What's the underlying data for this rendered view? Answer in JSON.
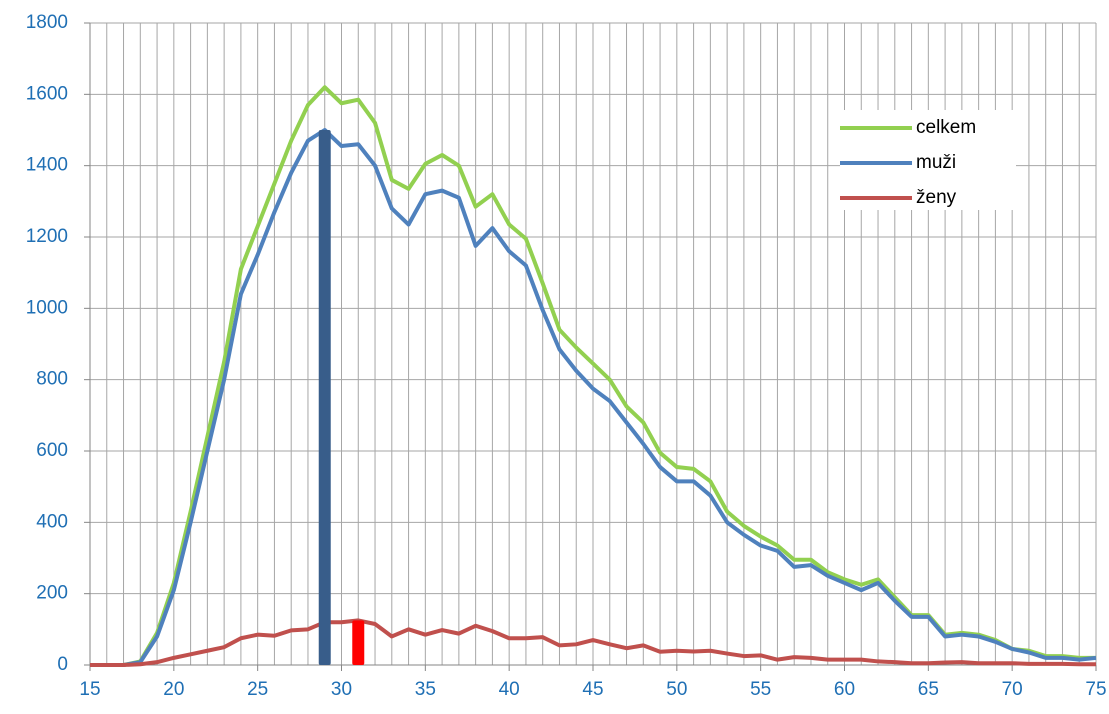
{
  "chart_data": {
    "type": "line",
    "x": [
      15,
      16,
      17,
      18,
      19,
      20,
      21,
      22,
      23,
      24,
      25,
      26,
      27,
      28,
      29,
      30,
      31,
      32,
      33,
      34,
      35,
      36,
      37,
      38,
      39,
      40,
      41,
      42,
      43,
      44,
      45,
      46,
      47,
      48,
      49,
      50,
      51,
      52,
      53,
      54,
      55,
      56,
      57,
      58,
      59,
      60,
      61,
      62,
      63,
      64,
      65,
      66,
      67,
      68,
      69,
      70,
      71,
      72,
      73,
      74,
      75
    ],
    "series": [
      {
        "name": "celkem",
        "color": "#92d050",
        "values": [
          0,
          0,
          0,
          10,
          90,
          230,
          430,
          640,
          850,
          1110,
          1230,
          1350,
          1470,
          1570,
          1620,
          1575,
          1585,
          1520,
          1360,
          1335,
          1405,
          1430,
          1400,
          1285,
          1320,
          1235,
          1195,
          1070,
          940,
          890,
          845,
          800,
          725,
          680,
          595,
          555,
          550,
          515,
          430,
          390,
          360,
          335,
          295,
          295,
          260,
          240,
          225,
          240,
          190,
          140,
          140,
          85,
          90,
          85,
          70,
          45,
          40,
          25,
          25,
          20,
          20
        ]
      },
      {
        "name": "muži",
        "color": "#4f81bd",
        "values": [
          0,
          0,
          0,
          8,
          80,
          210,
          400,
          600,
          800,
          1040,
          1150,
          1270,
          1380,
          1470,
          1500,
          1455,
          1460,
          1400,
          1280,
          1235,
          1320,
          1330,
          1310,
          1175,
          1225,
          1160,
          1120,
          995,
          885,
          825,
          775,
          740,
          680,
          620,
          555,
          515,
          515,
          475,
          400,
          365,
          335,
          320,
          275,
          280,
          250,
          230,
          210,
          230,
          180,
          135,
          135,
          80,
          85,
          80,
          65,
          45,
          35,
          20,
          20,
          15,
          20
        ]
      },
      {
        "name": "ženy",
        "color": "#c0504d",
        "values": [
          0,
          0,
          0,
          2,
          8,
          20,
          30,
          40,
          50,
          75,
          85,
          82,
          97,
          100,
          120,
          120,
          125,
          115,
          80,
          100,
          85,
          98,
          88,
          110,
          95,
          75,
          75,
          78,
          55,
          58,
          70,
          58,
          47,
          55,
          37,
          40,
          38,
          40,
          32,
          25,
          27,
          15,
          22,
          20,
          15,
          15,
          15,
          10,
          8,
          5,
          5,
          7,
          8,
          5,
          5,
          5,
          3,
          3,
          3,
          2,
          2
        ]
      }
    ],
    "markers": [
      {
        "x": 29,
        "value": 1500,
        "color": "#385d8a"
      },
      {
        "x": 31,
        "value": 125,
        "color": "#ff0000"
      }
    ],
    "xlim": [
      15,
      75
    ],
    "xticks": [
      15,
      20,
      25,
      30,
      35,
      40,
      45,
      50,
      55,
      60,
      65,
      70,
      75
    ],
    "ylim": [
      0,
      1800
    ],
    "yticks": [
      0,
      200,
      400,
      600,
      800,
      1000,
      1200,
      1400,
      1600,
      1800
    ],
    "grid": true,
    "legend": "upper right"
  }
}
